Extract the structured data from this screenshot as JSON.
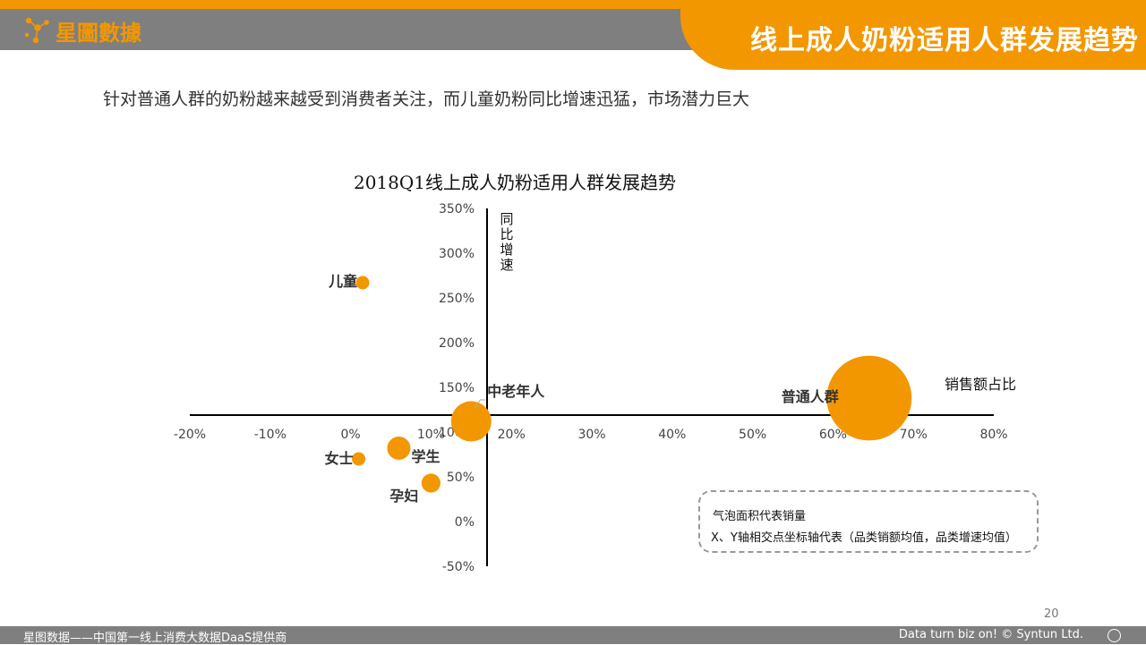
{
  "header": {
    "logo_text": "星圖數據",
    "title": "线上成人奶粉适用人群发展趋势"
  },
  "subtitle": "针对普通人群的奶粉越来越受到消费者关注，而儿童奶粉同比增速迅猛，市场潜力巨大",
  "chart_data": {
    "type": "scatter",
    "title": "2018Q1线上成人奶粉适用人群发展趋势",
    "xlabel": "销售额占比",
    "ylabel": "同比增速",
    "x_ticks": [
      "-20%",
      "-10%",
      "0%",
      "10%",
      "20%",
      "30%",
      "40%",
      "50%",
      "60%",
      "70%",
      "80%"
    ],
    "y_ticks": [
      "350%",
      "300%",
      "250%",
      "200%",
      "150%",
      "100%",
      "50%",
      "0%",
      "-50%"
    ],
    "xlim": [
      -20,
      80
    ],
    "ylim": [
      -50,
      350
    ],
    "points": [
      {
        "label": "儿童",
        "x": 1.5,
        "y": 267,
        "size": 1
      },
      {
        "label": "女士",
        "x": 1.0,
        "y": 70,
        "size": 1
      },
      {
        "label": "学生",
        "x": 6.0,
        "y": 82,
        "size": 3
      },
      {
        "label": "孕妇",
        "x": 10.0,
        "y": 43,
        "size": 2
      },
      {
        "label": "中老年人",
        "x": 15.0,
        "y": 112,
        "size": 9
      },
      {
        "label": "普通人群",
        "x": 64.5,
        "y": 138,
        "size": 40
      }
    ],
    "color": "#f39700"
  },
  "legend": {
    "line1": "气泡面积代表销量",
    "line2": "X、Y轴相交点坐标轴代表（品类销额均值，品类增速均值）"
  },
  "page_number": "20",
  "footer": {
    "left": "星图数据——中国第一线上消费大数据DaaS提供商",
    "right": "Data turn biz on! © Syntun Ltd."
  }
}
